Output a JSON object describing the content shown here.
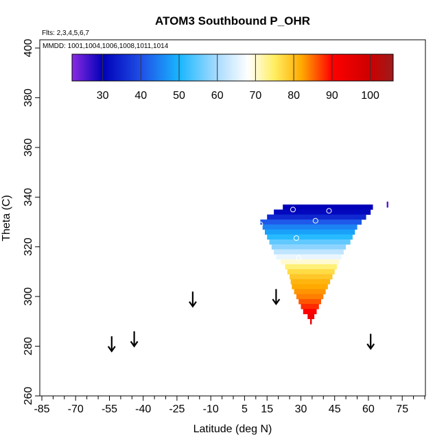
{
  "chart_data": {
    "type": "heatmap",
    "title": "ATOM3 Southbound P_OHR",
    "flights_note": "Flts: 2,3,4,5,6,7",
    "dates_note": "MMDD: 1001,1004,1006,1008,1011,1014",
    "xlabel": "Latitude (deg N)",
    "ylabel": "Theta (C)",
    "xlim": [
      -85,
      85
    ],
    "ylim": [
      260,
      410
    ],
    "x_ticks": [
      -85,
      -70,
      -55,
      -40,
      -25,
      -10,
      5,
      15,
      30,
      45,
      60,
      75
    ],
    "y_ticks": [
      260,
      280,
      300,
      320,
      340,
      360,
      380,
      400
    ],
    "colorbar": {
      "min": 22,
      "max": 106,
      "ticks": [
        30,
        40,
        50,
        60,
        70,
        80,
        90,
        100
      ],
      "stops": [
        {
          "v": 22,
          "c": "#8a2be2"
        },
        {
          "v": 30,
          "c": "#0000b8"
        },
        {
          "v": 40,
          "c": "#1f4fe6"
        },
        {
          "v": 50,
          "c": "#19b6ff"
        },
        {
          "v": 60,
          "c": "#a9dcff"
        },
        {
          "v": 68,
          "c": "#ffffff"
        },
        {
          "v": 75,
          "c": "#ffee60"
        },
        {
          "v": 82,
          "c": "#ffaa00"
        },
        {
          "v": 90,
          "c": "#ff0000"
        },
        {
          "v": 100,
          "c": "#cc0000"
        },
        {
          "v": 106,
          "c": "#9e1b1b"
        }
      ]
    },
    "rows": [
      {
        "theta": 336,
        "lat_min": 22.0,
        "lat_max": 62.0,
        "value": 30
      },
      {
        "theta": 334,
        "lat_min": 18.0,
        "lat_max": 61.0,
        "value": 31
      },
      {
        "theta": 332,
        "lat_min": 15.0,
        "lat_max": 59.0,
        "value": 35
      },
      {
        "theta": 330,
        "lat_min": 12.0,
        "lat_max": 57.0,
        "value": 41
      },
      {
        "theta": 328,
        "lat_min": 13.0,
        "lat_max": 55.0,
        "value": 45
      },
      {
        "theta": 326,
        "lat_min": 14.0,
        "lat_max": 54.0,
        "value": 48
      },
      {
        "theta": 324,
        "lat_min": 15.0,
        "lat_max": 53.0,
        "value": 51
      },
      {
        "theta": 322,
        "lat_min": 16.0,
        "lat_max": 52.0,
        "value": 55
      },
      {
        "theta": 320,
        "lat_min": 17.0,
        "lat_max": 50.0,
        "value": 58
      },
      {
        "theta": 318,
        "lat_min": 18.0,
        "lat_max": 49.0,
        "value": 62
      },
      {
        "theta": 316,
        "lat_min": 19.0,
        "lat_max": 48.0,
        "value": 66
      },
      {
        "theta": 314,
        "lat_min": 21.0,
        "lat_max": 47.0,
        "value": 70
      },
      {
        "theta": 312,
        "lat_min": 23.0,
        "lat_max": 46.0,
        "value": 74
      },
      {
        "theta": 310,
        "lat_min": 24.0,
        "lat_max": 45.0,
        "value": 77
      },
      {
        "theta": 308,
        "lat_min": 25.0,
        "lat_max": 44.0,
        "value": 79
      },
      {
        "theta": 306,
        "lat_min": 25.5,
        "lat_max": 43.0,
        "value": 81
      },
      {
        "theta": 304,
        "lat_min": 26.0,
        "lat_max": 42.0,
        "value": 82
      },
      {
        "theta": 302,
        "lat_min": 27.0,
        "lat_max": 41.0,
        "value": 83
      },
      {
        "theta": 300,
        "lat_min": 28.0,
        "lat_max": 40.0,
        "value": 84
      },
      {
        "theta": 298,
        "lat_min": 29.0,
        "lat_max": 39.0,
        "value": 86
      },
      {
        "theta": 296,
        "lat_min": 30.0,
        "lat_max": 38.0,
        "value": 88
      },
      {
        "theta": 294,
        "lat_min": 31.0,
        "lat_max": 37.0,
        "value": 90
      },
      {
        "theta": 292,
        "lat_min": 33.0,
        "lat_max": 36.0,
        "value": 93
      }
    ],
    "isolated_cells": [
      {
        "lat": 34.5,
        "theta": 290,
        "value": 95
      },
      {
        "lat": 68.5,
        "theta": 337,
        "value": 25
      }
    ],
    "points": [
      {
        "lat": 26.5,
        "theta": 335
      },
      {
        "lat": 42.5,
        "theta": 334.5
      },
      {
        "lat": 36.5,
        "theta": 330.5
      },
      {
        "lat": 12.0,
        "theta": 329
      },
      {
        "lat": 28.0,
        "theta": 323.5
      },
      {
        "lat": 55.0,
        "theta": 323
      },
      {
        "lat": 29.0,
        "theta": 315.5
      }
    ],
    "arrows": [
      {
        "lat": -54,
        "theta_top": 284,
        "theta_tip": 278
      },
      {
        "lat": -44,
        "theta_top": 286,
        "theta_tip": 280
      },
      {
        "lat": -18,
        "theta_top": 302,
        "theta_tip": 296
      },
      {
        "lat": 19,
        "theta_top": 303,
        "theta_tip": 297
      },
      {
        "lat": 61,
        "theta_top": 285,
        "theta_tip": 279
      }
    ]
  }
}
